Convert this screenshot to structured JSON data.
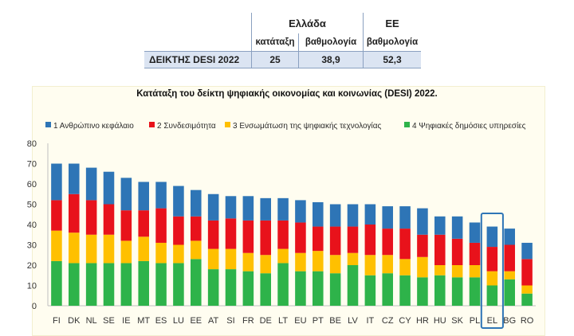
{
  "summary_table": {
    "header_greece": "Ελλάδα",
    "header_eu": "ΕΕ",
    "sub_rank": "κατάταξη",
    "sub_score": "βαθμολογία",
    "sub_eu_score": "βαθμολογία",
    "row_label": "ΔΕΙΚΤΗΣ DESI 2022",
    "rank": "25",
    "score": "38,9",
    "eu_score": "52,3"
  },
  "chart_data": {
    "type": "bar",
    "stacked": true,
    "title": "Κατάταξη του δείκτη ψηφιακής οικονομίας και κοινωνίας (DESI) 2022.",
    "xlabel": "",
    "ylabel": "",
    "ylim": [
      0,
      80
    ],
    "yticks": [
      0,
      10,
      20,
      30,
      40,
      50,
      60,
      70,
      80
    ],
    "grid": false,
    "legend_position": "top",
    "highlighted_category": "EL",
    "categories": [
      "FI",
      "DK",
      "NL",
      "SE",
      "IE",
      "MT",
      "ES",
      "LU",
      "EE",
      "AT",
      "SI",
      "FR",
      "DE",
      "LT",
      "EU",
      "PT",
      "BE",
      "LV",
      "IT",
      "CZ",
      "CY",
      "HR",
      "HU",
      "SK",
      "PL",
      "EL",
      "BG",
      "RO"
    ],
    "series": [
      {
        "name": "4 Ψηφιακές δημόσιες υπηρεσίες",
        "color": "#2eb34a",
        "values": [
          22,
          21,
          21,
          21,
          21,
          22,
          21,
          21,
          23,
          18,
          18,
          17,
          16,
          21,
          17,
          17,
          16,
          20,
          15,
          16,
          15,
          14,
          15,
          14,
          14,
          10,
          13,
          6
        ]
      },
      {
        "name": "3 Ενσωμάτωση της ψηφιακής τεχνολογίας",
        "color": "#ffc000",
        "values": [
          15,
          15,
          14,
          14,
          11,
          12,
          10,
          9,
          9,
          10,
          10,
          9,
          9,
          7,
          9,
          10,
          9,
          6,
          10,
          9,
          8,
          10,
          5,
          6,
          6,
          7,
          4,
          4
        ]
      },
      {
        "name": "2 Συνδεσιμότητα",
        "color": "#e8121b",
        "values": [
          15,
          19,
          17,
          15,
          15,
          13,
          17,
          14,
          12,
          14,
          15,
          16,
          17,
          14,
          15,
          12,
          14,
          13,
          15,
          13,
          15,
          11,
          15,
          13,
          11,
          12,
          13,
          13
        ]
      },
      {
        "name": "1 Ανθρώπινο κεφάλαιο",
        "color": "#2e75b6",
        "values": [
          18,
          15,
          16,
          16,
          16,
          14,
          13,
          15,
          13,
          13,
          11,
          12,
          11,
          11,
          11,
          12,
          11,
          11,
          10,
          11,
          11,
          13,
          9,
          11,
          10,
          10,
          8,
          8
        ]
      }
    ]
  },
  "legend_order": [
    "1 Ανθρώπινο κεφάλαιο",
    "2 Συνδεσιμότητα",
    "3 Ενσωμάτωση της ψηφιακής τεχνολογίας",
    "4 Ψηφιακές δημόσιες υπηρεσίες"
  ],
  "colors": {
    "human_capital": "#2e75b6",
    "connectivity": "#e8121b",
    "integration": "#ffc000",
    "public_services": "#2eb34a",
    "highlight_box": "#2e75b6"
  }
}
